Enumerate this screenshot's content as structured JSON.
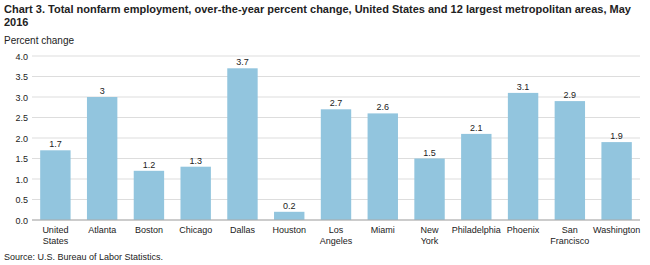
{
  "chart_data": {
    "type": "bar",
    "title": "Chart 3. Total nonfarm employment, over-the-year percent change, United States and 12 largest metropolitan areas, May 2016",
    "ylabel": "Percent change",
    "source": "Source: U.S. Bureau of Labor Statistics.",
    "categories": [
      "United\nStates",
      "Atlanta",
      "Boston",
      "Chicago",
      "Dallas",
      "Houston",
      "Los\nAngeles",
      "Miami",
      "New\nYork",
      "Philadelphia",
      "Phoenix",
      "San\nFrancisco",
      "Washington"
    ],
    "values": [
      1.7,
      3.0,
      1.2,
      1.3,
      3.7,
      0.2,
      2.7,
      2.6,
      1.5,
      2.1,
      3.1,
      2.9,
      1.9
    ],
    "color": "#92C5DE",
    "ylim": [
      0,
      4.0
    ],
    "yticks": [
      {
        "value": 0.0,
        "label": "0.0"
      },
      0.5,
      {
        "value": 1.0,
        "label": "1.0"
      },
      1.5,
      {
        "value": 2.0,
        "label": "2.0"
      },
      2.5,
      {
        "value": 3.0,
        "label": "3.0"
      },
      3.5,
      {
        "value": 4.0,
        "label": "4.0"
      }
    ],
    "grid": true,
    "data_labels": true
  }
}
